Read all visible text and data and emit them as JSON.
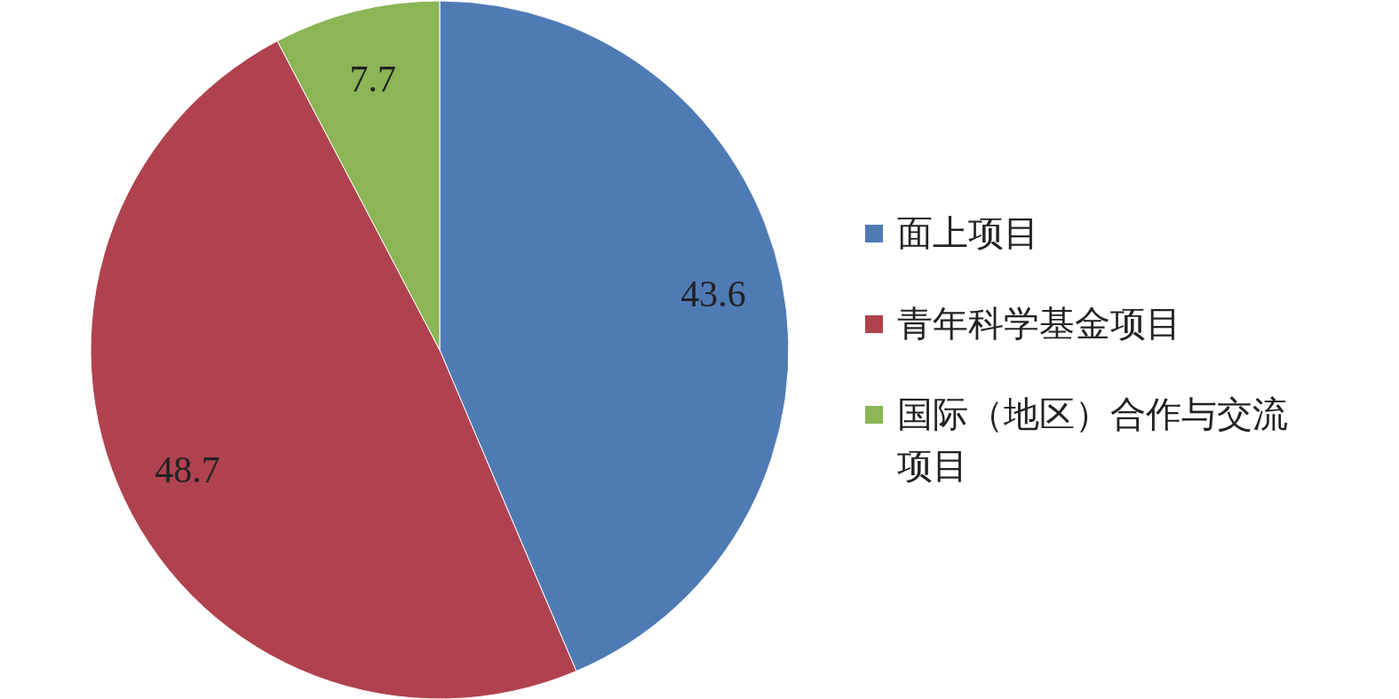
{
  "chart_data": {
    "type": "pie",
    "categories": [
      "面上项目",
      "青年科学基金项目",
      "国际（地区）合作与交流项目"
    ],
    "values": [
      43.6,
      48.7,
      7.7
    ],
    "colors": [
      "#4f7bb5",
      "#b0424f",
      "#8cb556"
    ],
    "data_labels": true,
    "legend": "right"
  }
}
